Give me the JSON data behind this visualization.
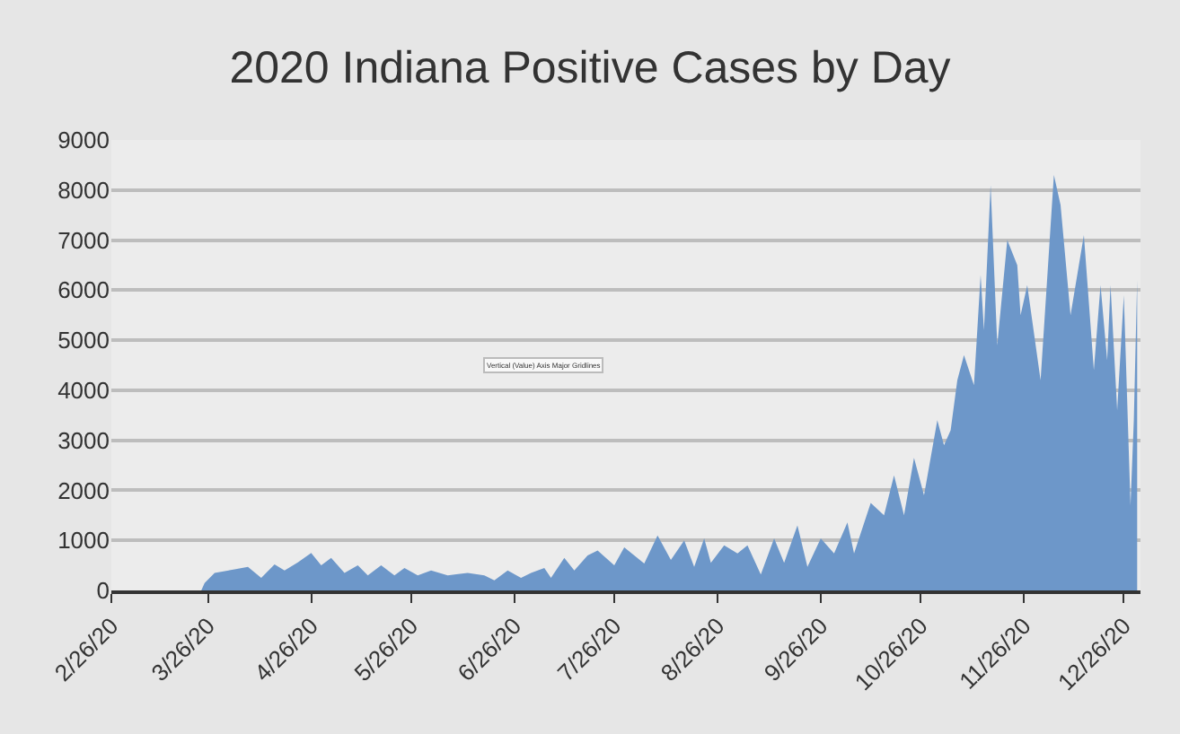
{
  "chart_data": {
    "type": "area",
    "title": "2020 Indiana Positive Cases by Day",
    "x": [
      "2020-02-26",
      "2020-03-24",
      "2020-03-25",
      "2020-03-28",
      "2020-04-03",
      "2020-04-07",
      "2020-04-11",
      "2020-04-15",
      "2020-04-18",
      "2020-04-22",
      "2020-04-26",
      "2020-04-29",
      "2020-05-02",
      "2020-05-06",
      "2020-05-10",
      "2020-05-13",
      "2020-05-17",
      "2020-05-21",
      "2020-05-24",
      "2020-05-28",
      "2020-06-01",
      "2020-06-06",
      "2020-06-12",
      "2020-06-17",
      "2020-06-20",
      "2020-06-24",
      "2020-06-28",
      "2020-07-01",
      "2020-07-05",
      "2020-07-07",
      "2020-07-11",
      "2020-07-14",
      "2020-07-18",
      "2020-07-21",
      "2020-07-26",
      "2020-07-29",
      "2020-08-04",
      "2020-08-08",
      "2020-08-12",
      "2020-08-16",
      "2020-08-19",
      "2020-08-22",
      "2020-08-24",
      "2020-08-28",
      "2020-09-01",
      "2020-09-04",
      "2020-09-08",
      "2020-09-12",
      "2020-09-15",
      "2020-09-19",
      "2020-09-22",
      "2020-09-26",
      "2020-09-30",
      "2020-10-04",
      "2020-10-06",
      "2020-10-11",
      "2020-10-15",
      "2020-10-18",
      "2020-10-21",
      "2020-10-24",
      "2020-10-27",
      "2020-10-31",
      "2020-11-02",
      "2020-11-04",
      "2020-11-06",
      "2020-11-08",
      "2020-11-11",
      "2020-11-13",
      "2020-11-14",
      "2020-11-16",
      "2020-11-18",
      "2020-11-21",
      "2020-11-24",
      "2020-11-25",
      "2020-11-27",
      "2020-12-01",
      "2020-12-05",
      "2020-12-07",
      "2020-12-10",
      "2020-12-14",
      "2020-12-17",
      "2020-12-19",
      "2020-12-21",
      "2020-12-22",
      "2020-12-24",
      "2020-12-26",
      "2020-12-28",
      "2020-12-29",
      "2020-12-30"
    ],
    "series": [
      {
        "color": "#6d97c9",
        "values": [
          0,
          0,
          150,
          350,
          420,
          470,
          250,
          520,
          400,
          560,
          750,
          500,
          650,
          350,
          500,
          300,
          500,
          300,
          450,
          300,
          400,
          300,
          350,
          300,
          200,
          400,
          250,
          350,
          450,
          250,
          650,
          400,
          700,
          800,
          500,
          860,
          540,
          1100,
          610,
          1000,
          470,
          1040,
          550,
          900,
          740,
          900,
          320,
          1040,
          550,
          1300,
          470,
          1040,
          740,
          1360,
          740,
          1750,
          1500,
          2300,
          1500,
          2650,
          1900,
          3400,
          2900,
          3200,
          4200,
          4700,
          4100,
          6300,
          5200,
          8100,
          4900,
          7000,
          6500,
          5500,
          6100,
          4200,
          8300,
          7700,
          5500,
          7100,
          4400,
          6100,
          4600,
          6100,
          3600,
          5900,
          1700,
          3400,
          6200
        ]
      }
    ],
    "xlim": [
      "2020-02-26",
      "2020-12-31"
    ],
    "xticks": [
      {
        "value": "2020-02-26",
        "label": "2/26/20"
      },
      {
        "value": "2020-03-26",
        "label": "3/26/20"
      },
      {
        "value": "2020-04-26",
        "label": "4/26/20"
      },
      {
        "value": "2020-05-26",
        "label": "5/26/20"
      },
      {
        "value": "2020-06-26",
        "label": "6/26/20"
      },
      {
        "value": "2020-07-26",
        "label": "7/26/20"
      },
      {
        "value": "2020-08-26",
        "label": "8/26/20"
      },
      {
        "value": "2020-09-26",
        "label": "9/26/20"
      },
      {
        "value": "2020-10-26",
        "label": "10/26/20"
      },
      {
        "value": "2020-11-26",
        "label": "11/26/20"
      },
      {
        "value": "2020-12-26",
        "label": "12/26/20"
      }
    ],
    "ylim": [
      0,
      9000
    ],
    "yticks": [
      0,
      1000,
      2000,
      3000,
      4000,
      5000,
      6000,
      7000,
      8000,
      9000
    ],
    "grid": "y",
    "annotations": [
      "Vertical (Value) Axis Major Gridlines"
    ]
  }
}
